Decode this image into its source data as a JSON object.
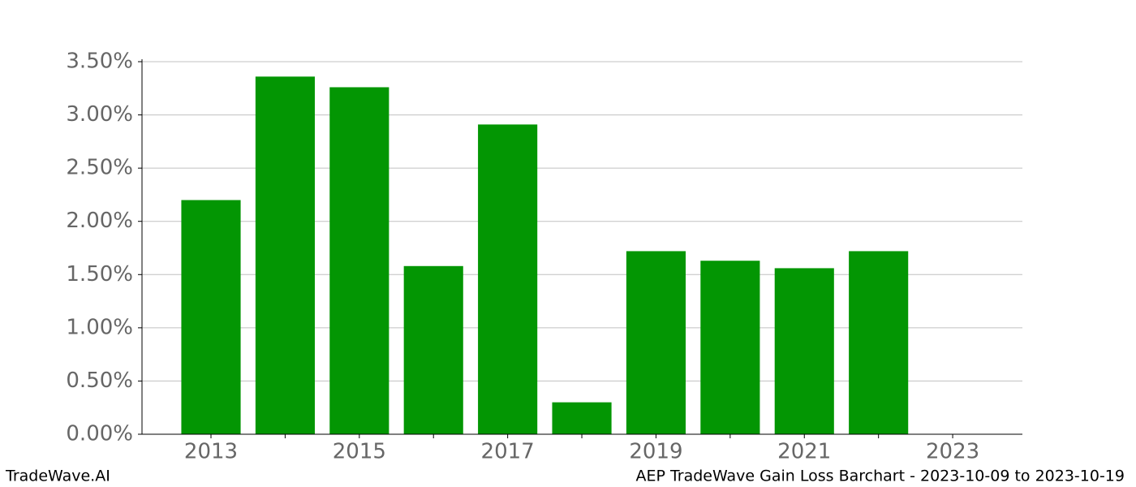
{
  "chart_data": {
    "type": "bar",
    "x": [
      2013,
      2014,
      2015,
      2016,
      2017,
      2018,
      2019,
      2020,
      2021,
      2022
    ],
    "values": [
      2.2,
      3.36,
      3.26,
      1.58,
      2.91,
      0.3,
      1.72,
      1.63,
      1.56,
      1.72
    ],
    "color": "#039603",
    "bar_width": 0.8,
    "xlim": [
      2012.07,
      2023.94
    ],
    "xticks": [
      2013,
      2015,
      2017,
      2019,
      2021,
      2023
    ],
    "xminorticks": [
      2014,
      2016,
      2018,
      2020,
      2022
    ],
    "ylim": [
      0,
      3.5
    ],
    "yticks": [
      {
        "value": 0,
        "label": "0.00%"
      },
      {
        "value": 0.5,
        "label": "0.50%"
      },
      {
        "value": 1,
        "label": "1.00%"
      },
      {
        "value": 1.5,
        "label": "1.50%"
      },
      {
        "value": 2,
        "label": "2.00%"
      },
      {
        "value": 2.5,
        "label": "2.50%"
      },
      {
        "value": 3,
        "label": "3.00%"
      },
      {
        "value": 3.5,
        "label": "3.50%"
      }
    ],
    "grid": true,
    "footer_left": "TradeWave.AI",
    "footer_right": "AEP TradeWave Gain Loss Barchart - 2023-10-09 to 2023-10-19"
  }
}
